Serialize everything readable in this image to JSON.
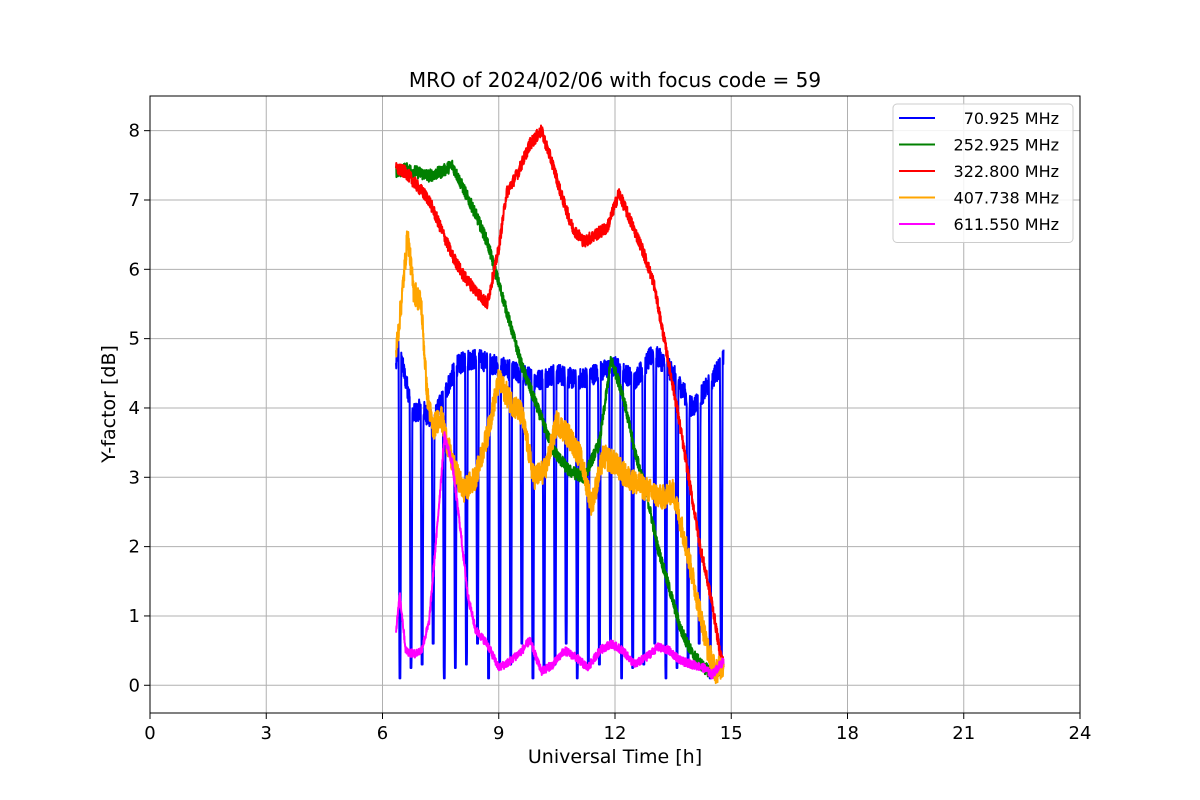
{
  "chart_data": {
    "type": "line",
    "title": "MRO of 2024/02/06 with focus code = 59",
    "xlabel": "Universal Time [h]",
    "ylabel": "Y-factor [dB]",
    "xlim": [
      0,
      24
    ],
    "ylim": [
      -0.4,
      8.5
    ],
    "xticks": [
      0,
      3,
      6,
      9,
      12,
      15,
      18,
      21,
      24
    ],
    "yticks": [
      0,
      1,
      2,
      3,
      4,
      5,
      6,
      7,
      8
    ],
    "grid": true,
    "legend_position": "top-right",
    "series": [
      {
        "name": " 70.925 MHz",
        "color": "#0000ff",
        "noise": 0.15,
        "dips": {
          "start": 6.45,
          "spacing": 0.286,
          "end": 14.8,
          "width": 0.035,
          "floor": [
            0.1,
            0.25,
            0.3,
            0.6
          ]
        },
        "x": [
          6.35,
          6.4,
          6.6,
          6.8,
          7.0,
          7.3,
          7.6,
          7.9,
          8.2,
          8.5,
          9.0,
          9.5,
          10.0,
          10.5,
          11.0,
          11.5,
          12.0,
          12.5,
          13.0,
          13.5,
          14.0,
          14.5,
          14.8
        ],
        "y": [
          4.6,
          4.9,
          4.4,
          3.9,
          4.0,
          3.8,
          4.2,
          4.6,
          4.7,
          4.7,
          4.6,
          4.5,
          4.4,
          4.5,
          4.4,
          4.5,
          4.6,
          4.4,
          4.8,
          4.5,
          4.0,
          4.4,
          4.7
        ]
      },
      {
        "name": "252.925 MHz",
        "color": "#008000",
        "noise": 0.09,
        "x": [
          6.35,
          6.6,
          6.9,
          7.2,
          7.5,
          7.8,
          8.1,
          8.4,
          8.7,
          9.0,
          9.3,
          9.6,
          10.0,
          10.4,
          10.8,
          11.2,
          11.6,
          11.9,
          12.2,
          12.5,
          12.8,
          13.1,
          13.4,
          13.7,
          14.0,
          14.3,
          14.6,
          14.8
        ],
        "y": [
          7.4,
          7.45,
          7.4,
          7.35,
          7.4,
          7.5,
          7.15,
          6.8,
          6.4,
          5.8,
          5.2,
          4.6,
          4.0,
          3.4,
          3.1,
          3.0,
          3.5,
          4.7,
          4.2,
          3.4,
          2.8,
          2.0,
          1.4,
          0.8,
          0.45,
          0.25,
          0.15,
          0.35
        ]
      },
      {
        "name": "322.800 MHz",
        "color": "#ff0000",
        "noise": 0.09,
        "x": [
          6.35,
          6.6,
          6.9,
          7.2,
          7.5,
          7.8,
          8.1,
          8.4,
          8.7,
          9.0,
          9.2,
          9.5,
          9.8,
          10.1,
          10.4,
          10.6,
          10.9,
          11.2,
          11.5,
          11.8,
          12.1,
          12.4,
          12.7,
          13.0,
          13.3,
          13.6,
          13.9,
          14.2,
          14.5,
          14.7,
          14.8
        ],
        "y": [
          7.45,
          7.4,
          7.2,
          7.0,
          6.6,
          6.2,
          5.9,
          5.7,
          5.5,
          6.3,
          7.1,
          7.4,
          7.8,
          8.0,
          7.5,
          7.1,
          6.6,
          6.4,
          6.5,
          6.6,
          7.1,
          6.7,
          6.3,
          5.8,
          4.9,
          4.0,
          3.0,
          2.0,
          1.2,
          0.5,
          0.3
        ]
      },
      {
        "name": "407.738 MHz",
        "color": "#ffa500",
        "noise": 0.18,
        "x": [
          6.35,
          6.5,
          6.65,
          6.8,
          7.0,
          7.15,
          7.3,
          7.5,
          7.8,
          8.1,
          8.4,
          8.7,
          9.0,
          9.3,
          9.6,
          9.9,
          10.2,
          10.5,
          10.8,
          11.1,
          11.4,
          11.7,
          12.0,
          12.3,
          12.6,
          12.9,
          13.2,
          13.5,
          13.8,
          14.1,
          14.4,
          14.6,
          14.8
        ],
        "y": [
          4.8,
          5.6,
          6.5,
          5.7,
          5.5,
          4.2,
          3.7,
          3.9,
          3.2,
          2.8,
          3.0,
          3.6,
          4.4,
          4.1,
          3.9,
          3.0,
          3.1,
          3.8,
          3.6,
          3.3,
          2.6,
          3.3,
          3.2,
          3.0,
          2.9,
          2.8,
          2.7,
          2.8,
          2.1,
          1.3,
          0.5,
          0.2,
          0.3
        ]
      },
      {
        "name": "611.550 MHz",
        "color": "#ff00ff",
        "noise": 0.06,
        "x": [
          6.35,
          6.45,
          6.6,
          6.8,
          7.0,
          7.2,
          7.4,
          7.6,
          7.8,
          8.0,
          8.2,
          8.4,
          8.7,
          9.0,
          9.3,
          9.6,
          9.8,
          10.1,
          10.4,
          10.7,
          11.0,
          11.3,
          11.6,
          11.9,
          12.2,
          12.5,
          12.8,
          13.1,
          13.4,
          13.7,
          14.0,
          14.3,
          14.5,
          14.8
        ],
        "y": [
          0.8,
          1.3,
          0.5,
          0.45,
          0.5,
          0.9,
          2.2,
          3.6,
          3.2,
          2.3,
          1.3,
          0.8,
          0.6,
          0.25,
          0.35,
          0.5,
          0.65,
          0.2,
          0.3,
          0.5,
          0.4,
          0.25,
          0.5,
          0.6,
          0.5,
          0.3,
          0.4,
          0.55,
          0.5,
          0.35,
          0.3,
          0.25,
          0.15,
          0.35
        ]
      }
    ]
  }
}
